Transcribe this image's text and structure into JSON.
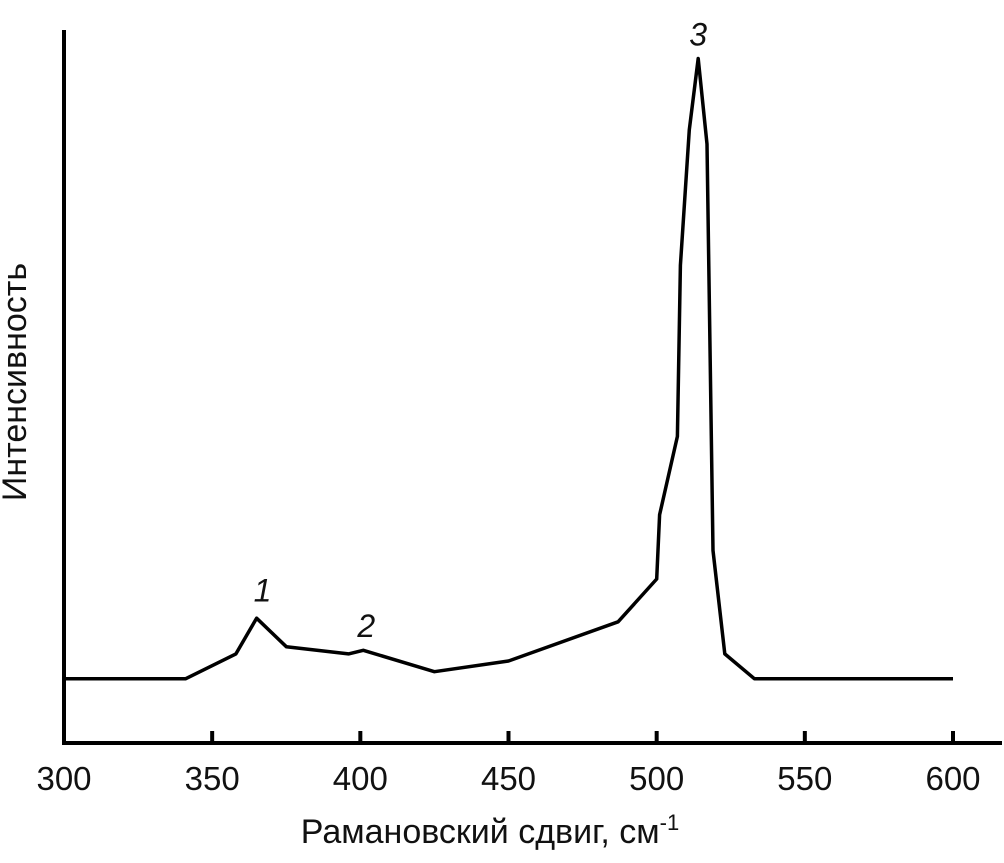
{
  "chart_data": {
    "type": "line",
    "title": "",
    "xlabel": "Рамановский сдвиг, см",
    "xlabel_superscript": "-1",
    "ylabel": "Интенсивность",
    "xlim": [
      300,
      600
    ],
    "ylim": [
      0,
      100
    ],
    "y_ticks_shown": false,
    "grid": false,
    "legend": "none",
    "x_ticks": [
      "300",
      "350",
      "400",
      "450",
      "500",
      "550",
      "600"
    ],
    "series": [
      {
        "color": "#000000",
        "x": [
          300,
          341,
          358,
          365,
          375,
          396,
          401,
          425,
          450,
          487,
          500,
          501,
          507,
          508,
          511,
          514,
          517,
          519,
          523,
          533,
          600
        ],
        "y": [
          9,
          9,
          12.5,
          17.5,
          13.5,
          12.5,
          13,
          10,
          11.5,
          17,
          23,
          32,
          43,
          67,
          86,
          96,
          84,
          27,
          12.5,
          9,
          9
        ]
      }
    ],
    "annotations": [
      {
        "text": "1",
        "x": 367,
        "y": 19
      },
      {
        "text": "2",
        "x": 402,
        "y": 14
      },
      {
        "text": "3",
        "x": 514,
        "y": 97
      }
    ]
  }
}
